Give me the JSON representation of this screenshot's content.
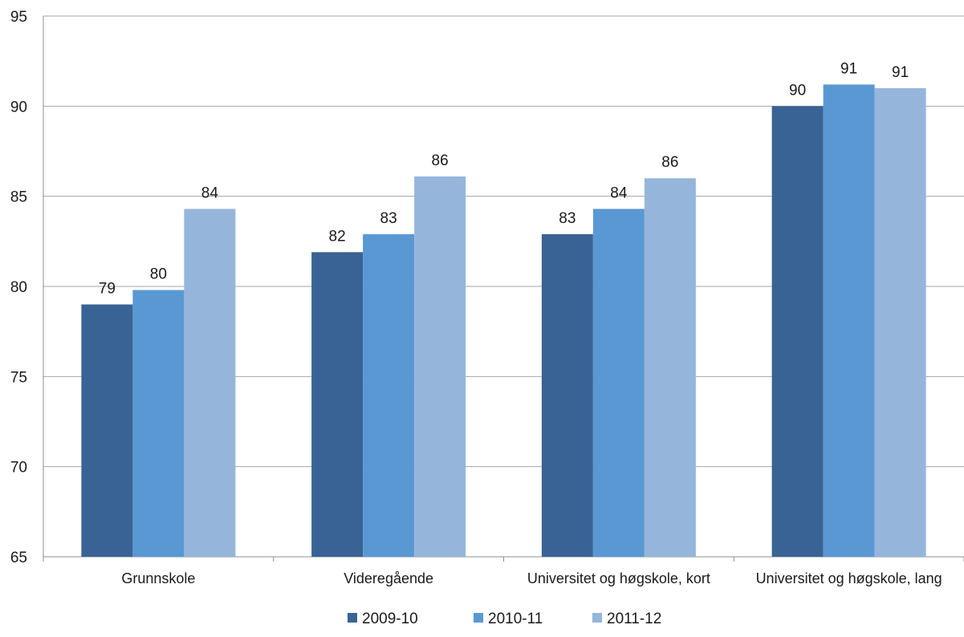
{
  "chart_data": {
    "type": "bar",
    "categories": [
      "Grunnskole",
      "Videregående",
      "Universitet og høgskole, kort",
      "Universitet og høgskole, lang"
    ],
    "series": [
      {
        "name": "2009-10",
        "color": "#386394",
        "values": [
          79.0,
          81.9,
          82.9,
          90.0
        ],
        "labels": [
          "79",
          "82",
          "83",
          "90"
        ]
      },
      {
        "name": "2010-11",
        "color": "#5a98d4",
        "values": [
          79.8,
          82.9,
          84.3,
          91.2
        ],
        "labels": [
          "80",
          "83",
          "84",
          "91"
        ]
      },
      {
        "name": "2011-12",
        "color": "#96b5db",
        "values": [
          84.3,
          86.1,
          86.0,
          91.0
        ],
        "labels": [
          "84",
          "86",
          "86",
          "91"
        ]
      }
    ],
    "ylim": [
      65,
      95
    ],
    "yticks": [
      "65",
      "70",
      "75",
      "80",
      "85",
      "90",
      "95"
    ],
    "grid": true,
    "legend": "bottom-center",
    "title": "",
    "xlabel": "",
    "ylabel": ""
  }
}
